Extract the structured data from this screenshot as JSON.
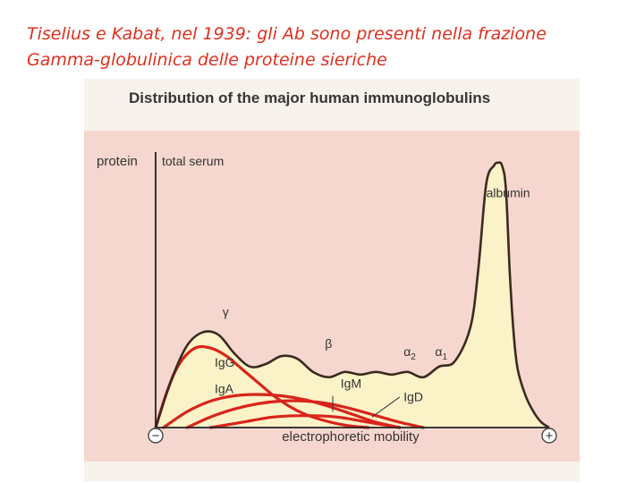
{
  "caption": {
    "line1": "Tiselius e Kabat, nel 1939: gli Ab sono presenti nella frazione",
    "line2": "Gamma-globulinica delle proteine sieriche"
  },
  "figure": {
    "title": "Distribution of the major human immunoglobulins"
  },
  "chart_data": {
    "type": "area",
    "title": "Distribution of the major human immunoglobulins",
    "xlabel": "electrophoretic mobility",
    "ylabel": "protein",
    "x_axis_end_labels": [
      "−",
      "+"
    ],
    "xlim": [
      0,
      100
    ],
    "ylim": [
      0,
      100
    ],
    "grid": false,
    "series": [
      {
        "name": "total serum",
        "color": "#3a2a20",
        "fill": "#fbf2c8",
        "x": [
          0,
          4,
          8,
          12,
          16,
          20,
          24,
          28,
          32,
          36,
          40,
          44,
          48,
          52,
          56,
          60,
          64,
          68,
          72,
          76,
          80,
          82,
          84,
          86,
          87,
          88,
          89,
          90,
          91,
          92,
          94,
          96,
          98,
          100
        ],
        "y": [
          0,
          18,
          31,
          36,
          35,
          28,
          23,
          24,
          27,
          26,
          21,
          19,
          21,
          20,
          21,
          20,
          21,
          19,
          23,
          25,
          38,
          60,
          92,
          99,
          100,
          99,
          90,
          58,
          35,
          22,
          12,
          6,
          2,
          0
        ]
      },
      {
        "name": "IgG",
        "color": "#d9241b",
        "x": [
          0,
          3,
          6,
          10,
          14,
          18,
          22,
          26,
          30,
          34,
          38,
          42,
          46,
          50,
          54
        ],
        "y": [
          0,
          14,
          24,
          30,
          30,
          27,
          22,
          17,
          12,
          8,
          5,
          3,
          1.5,
          0.5,
          0
        ]
      },
      {
        "name": "IgA",
        "color": "#d9241b",
        "x": [
          2,
          8,
          14,
          20,
          26,
          32,
          38,
          44,
          50,
          56,
          62
        ],
        "y": [
          0,
          6,
          10,
          12,
          12.5,
          12,
          10.5,
          8,
          5,
          2,
          0
        ]
      },
      {
        "name": "IgM",
        "color": "#d9241b",
        "x": [
          8,
          14,
          20,
          26,
          32,
          38,
          44,
          50,
          56,
          62,
          68
        ],
        "y": [
          0,
          4,
          7,
          9,
          10,
          10,
          9,
          7,
          4.5,
          2,
          0
        ]
      },
      {
        "name": "IgD",
        "color": "#d9241b",
        "x": [
          14,
          22,
          30,
          38,
          46,
          54,
          62
        ],
        "y": [
          0,
          2,
          4,
          4.5,
          4,
          2,
          0
        ]
      }
    ],
    "annotations": [
      {
        "text": "albumin",
        "x": 84,
        "y": 87
      },
      {
        "text": "γ",
        "x": 17,
        "y": 42
      },
      {
        "text": "β",
        "x": 43,
        "y": 30
      },
      {
        "text": "α2",
        "x": 63,
        "y": 27
      },
      {
        "text": "α1",
        "x": 71,
        "y": 27
      },
      {
        "text": "IgG",
        "x": 15,
        "y": 23
      },
      {
        "text": "IgA",
        "x": 15,
        "y": 13
      },
      {
        "text": "IgM",
        "x": 47,
        "y": 15
      },
      {
        "text": "IgD",
        "x": 63,
        "y": 10
      }
    ]
  }
}
